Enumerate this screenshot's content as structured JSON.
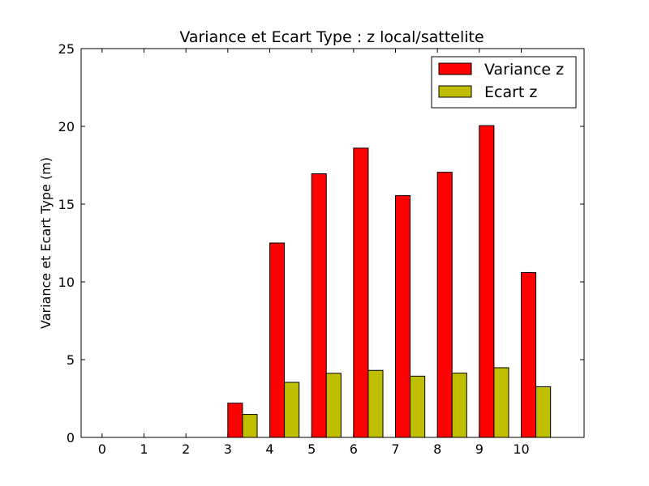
{
  "chart_data": {
    "type": "bar",
    "title": "Variance et Ecart Type : z local/sattelite",
    "xlabel": "",
    "ylabel": "Variance et Ecart Type (m)",
    "categories": [
      "0",
      "1",
      "2",
      "3",
      "4",
      "5",
      "6",
      "7",
      "8",
      "9",
      "10"
    ],
    "xlim": [
      -0.5,
      11.5
    ],
    "ylim": [
      0,
      25
    ],
    "yticks": [
      "0",
      "5",
      "10",
      "15",
      "20",
      "25"
    ],
    "grid": false,
    "legend_position": "top-right",
    "series": [
      {
        "name": "Variance z",
        "color": "#ff0000",
        "values": [
          0,
          0,
          0,
          2.2,
          12.5,
          16.95,
          18.6,
          15.55,
          17.05,
          20.05,
          10.6
        ]
      },
      {
        "name": "Ecart z",
        "color": "#bfbf00",
        "values": [
          0,
          0,
          0,
          1.48,
          3.54,
          4.12,
          4.31,
          3.94,
          4.13,
          4.48,
          3.26
        ]
      }
    ]
  }
}
